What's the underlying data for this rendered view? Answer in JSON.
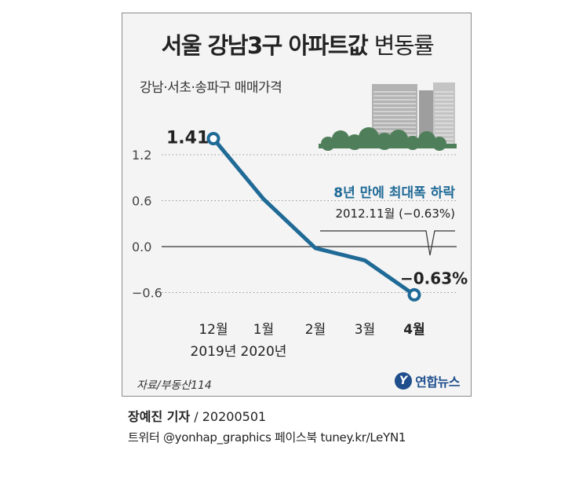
{
  "title_bold": "서울 강남3구 아파트값",
  "title_light": "변동률",
  "subtitle": "강남·서초·송파구 매매가격",
  "annotation": {
    "headline": "8년 만에 최대폭 하락",
    "detail": "2012.11월 (−0.63%)"
  },
  "source": "자료/부동산114",
  "logo_text": "연합뉴스",
  "credit": {
    "reporter": "장예진 기자",
    "date": " / 20200501"
  },
  "social": "트위터 @yonhap_graphics  페이스북 tuney.kr/LeYN1",
  "colors": {
    "line": "#1f6a96",
    "accent_text": "#1f6a96",
    "building": "#a8a8a8",
    "trees": "#4f7f5a"
  },
  "chart_data": {
    "type": "line",
    "title": "서울 강남3구 아파트값 변동률",
    "subtitle": "강남·서초·송파구 매매가격",
    "categories": [
      "12월",
      "1월",
      "2월",
      "3월",
      "4월"
    ],
    "category_years": [
      "2019년",
      "2020년",
      "",
      "",
      ""
    ],
    "values": [
      1.41,
      0.62,
      -0.02,
      -0.18,
      -0.63
    ],
    "data_labels": [
      "1.41",
      "",
      "",
      "",
      "−0.63%"
    ],
    "y_ticks": [
      "1.2",
      "0.6",
      "0.0",
      "−0.6"
    ],
    "y_tick_values": [
      1.2,
      0.6,
      0.0,
      -0.6
    ],
    "ylim": [
      -0.6,
      1.2
    ],
    "grid": "horizontal-dotted",
    "legend": "none"
  }
}
